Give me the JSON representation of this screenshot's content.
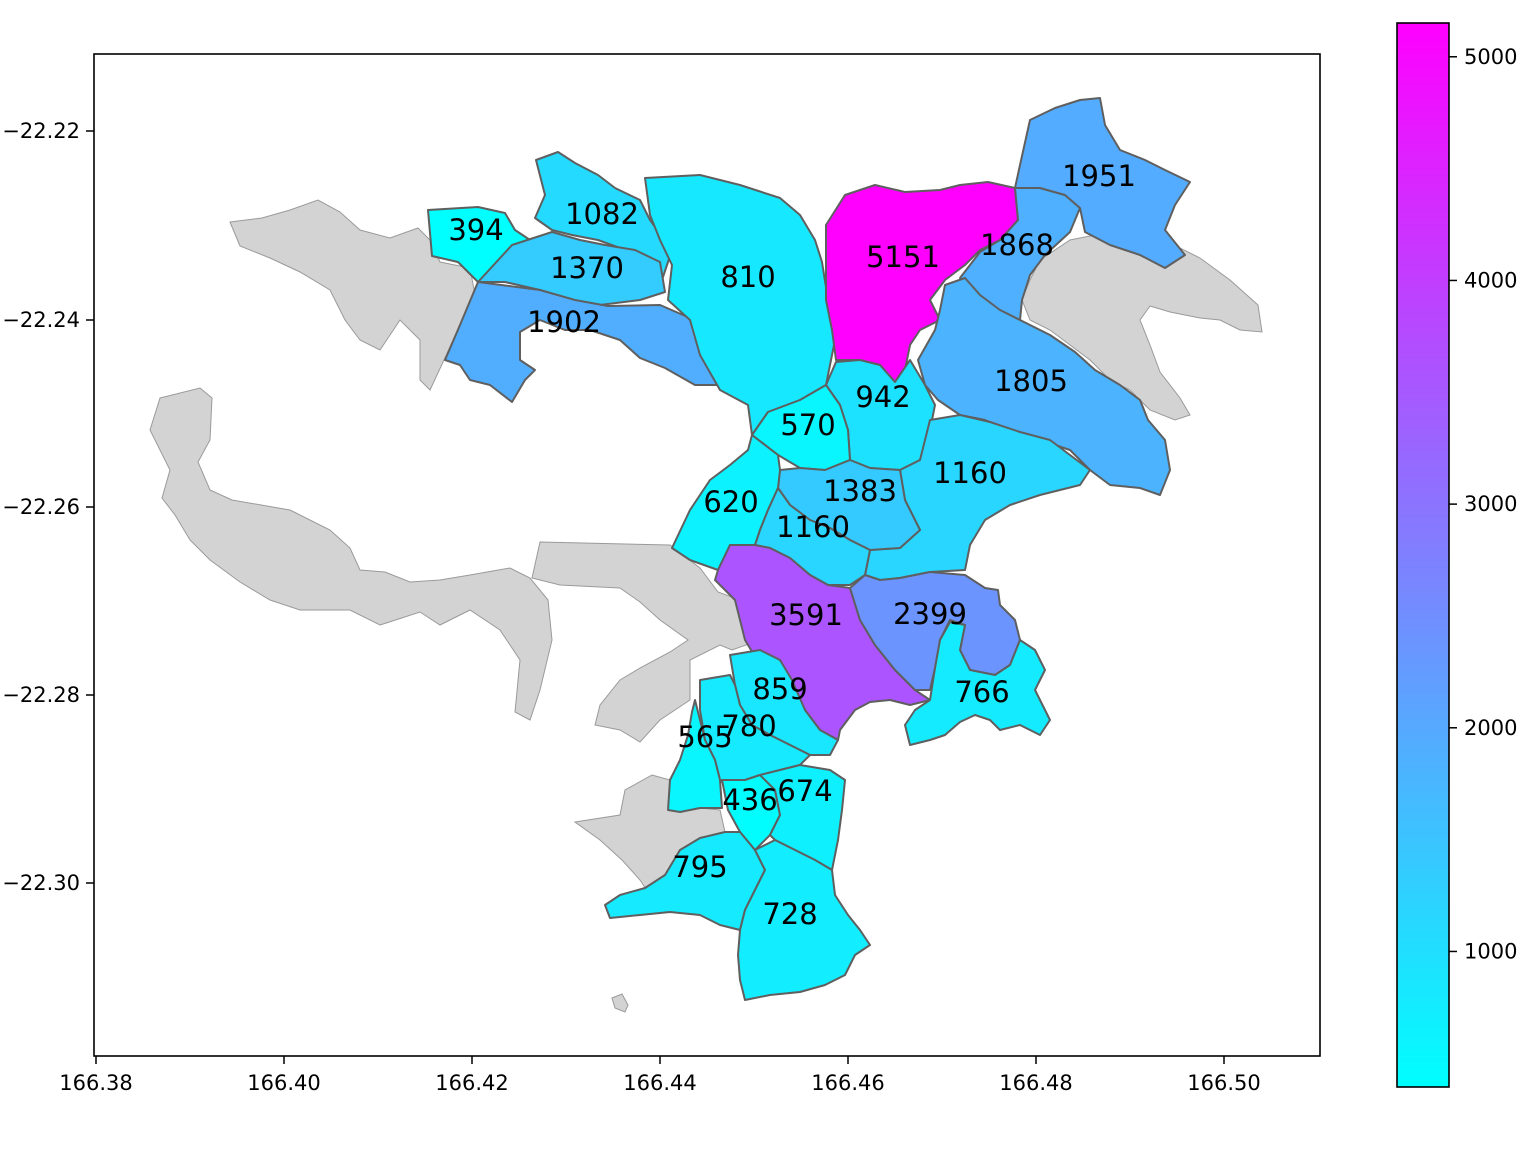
{
  "map": {
    "x_ticks": [
      "166.38",
      "166.40",
      "166.42",
      "166.44",
      "166.46",
      "166.48",
      "166.50"
    ],
    "y_ticks": [
      "−22.22",
      "−22.24",
      "−22.26",
      "−22.28",
      "−22.30"
    ],
    "colorbar": {
      "colormap": "cool",
      "min": 394,
      "max": 5151,
      "ticks": [
        "1000",
        "2000",
        "3000",
        "4000",
        "5000"
      ],
      "low_color": "#00ffff",
      "high_color": "#ff00ff"
    },
    "districts": [
      {
        "label": "394",
        "value": 394
      },
      {
        "label": "1082",
        "value": 1082
      },
      {
        "label": "1370",
        "value": 1370
      },
      {
        "label": "1902",
        "value": 1902
      },
      {
        "label": "810",
        "value": 810
      },
      {
        "label": "5151",
        "value": 5151
      },
      {
        "label": "1868",
        "value": 1868
      },
      {
        "label": "1951",
        "value": 1951
      },
      {
        "label": "1805",
        "value": 1805
      },
      {
        "label": "942",
        "value": 942
      },
      {
        "label": "570",
        "value": 570
      },
      {
        "label": "1160",
        "value": 1160
      },
      {
        "label": "1383",
        "value": 1383
      },
      {
        "label": "620",
        "value": 620
      },
      {
        "label": "1160",
        "value": 1160
      },
      {
        "label": "3591",
        "value": 3591
      },
      {
        "label": "2399",
        "value": 2399
      },
      {
        "label": "766",
        "value": 766
      },
      {
        "label": "859",
        "value": 859
      },
      {
        "label": "780",
        "value": 780
      },
      {
        "label": "565",
        "value": 565
      },
      {
        "label": "436",
        "value": 436
      },
      {
        "label": "674",
        "value": 674
      },
      {
        "label": "795",
        "value": 795
      },
      {
        "label": "728",
        "value": 728
      }
    ]
  }
}
